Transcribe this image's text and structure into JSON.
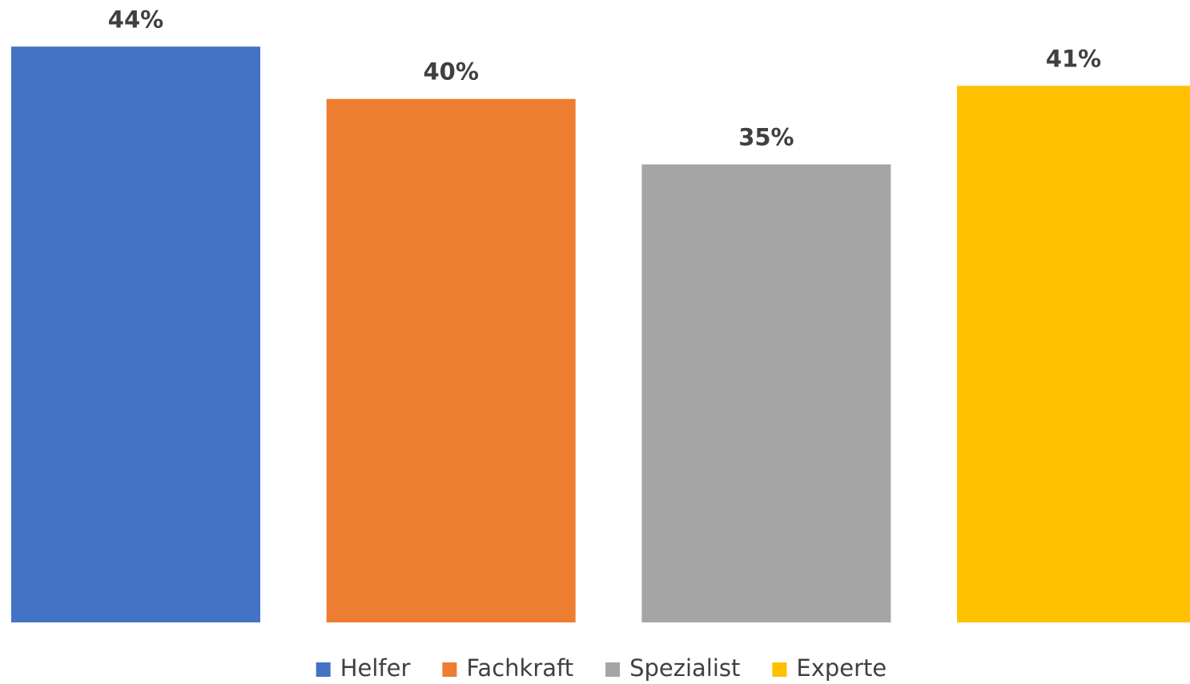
{
  "chart_data": {
    "type": "bar",
    "categories": [
      null
    ],
    "series": [
      {
        "name": "Helfer",
        "color": "#4472c4",
        "values": [
          44
        ],
        "value_labels": [
          "44%"
        ]
      },
      {
        "name": "Fachkraft",
        "color": "#ed7d31",
        "values": [
          40
        ],
        "value_labels": [
          "40%"
        ]
      },
      {
        "name": "Spezialist",
        "color": "#a5a5a5",
        "values": [
          35
        ],
        "value_labels": [
          "35%"
        ]
      },
      {
        "name": "Experte",
        "color": "#ffc000",
        "values": [
          41
        ],
        "value_labels": [
          "41%"
        ]
      }
    ],
    "ylim": [
      0,
      47.5
    ],
    "legend": "bottom"
  }
}
